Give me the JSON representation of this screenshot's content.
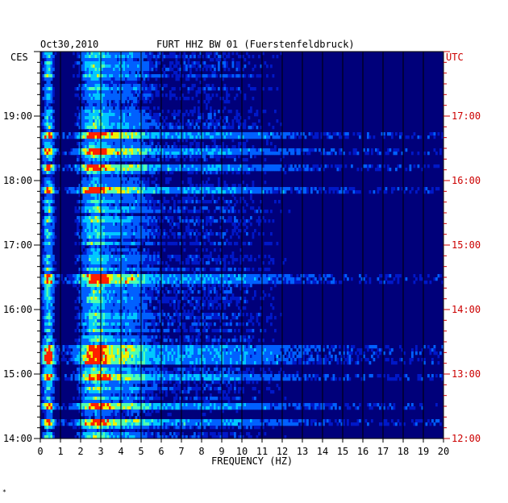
{
  "chart_data": {
    "type": "heatmap",
    "date": "Oct30,2010",
    "title": "FURT HHZ BW 01 (Fuerstenfeldbruck)",
    "left_axis_label": "CES",
    "right_axis_label": "UTC",
    "xlabel": "FREQUENCY (HZ)",
    "xlim": [
      0,
      20
    ],
    "x_ticks": [
      "0",
      "1",
      "2",
      "3",
      "4",
      "5",
      "6",
      "7",
      "8",
      "9",
      "10",
      "11",
      "12",
      "13",
      "14",
      "15",
      "16",
      "17",
      "18",
      "19",
      "20"
    ],
    "left_time_range_hours": [
      14.0,
      20.0
    ],
    "left_y_ticks": [
      "19:00",
      "18:00",
      "17:00",
      "16:00",
      "15:00",
      "14:00"
    ],
    "right_y_ticks": [
      "17:00",
      "16:00",
      "15:00",
      "14:00",
      "13:00",
      "12:00"
    ],
    "colormap": [
      "#00007a",
      "#0018c8",
      "#0060ff",
      "#00c8ff",
      "#50ffb0",
      "#f0f000",
      "#ff2000"
    ],
    "energy_bands_hz": [
      {
        "name": "low",
        "center": 0.4,
        "width": 0.25,
        "level": 0.95
      },
      {
        "name": "main",
        "center": 2.7,
        "width": 0.7,
        "level": 0.85
      },
      {
        "name": "mid",
        "center": 4.2,
        "width": 1.2,
        "level": 0.45
      },
      {
        "name": "tail",
        "center": 8.0,
        "width": 4.5,
        "level": 0.25
      }
    ],
    "strong_rows_time_hours": [
      18.7,
      18.45,
      18.2,
      17.85,
      16.5,
      16.45,
      15.4,
      15.3,
      15.2,
      14.95,
      14.5,
      14.25
    ]
  },
  "corner_mark": "*"
}
